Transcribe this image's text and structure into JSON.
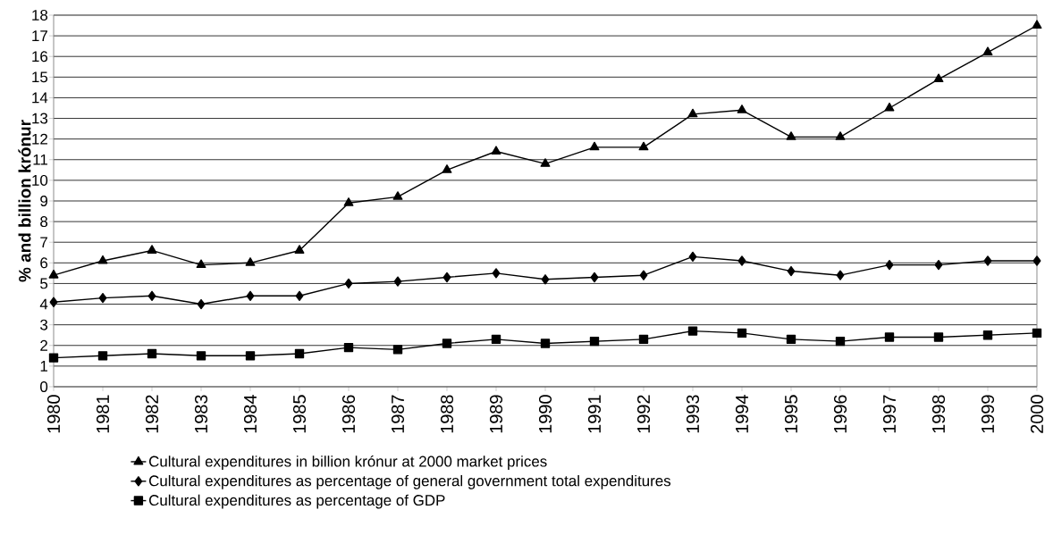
{
  "chart_data": {
    "type": "line",
    "ylabel": "% and billion krónur",
    "categories": [
      "1980",
      "1981",
      "1982",
      "1983",
      "1984",
      "1985",
      "1986",
      "1987",
      "1988",
      "1989",
      "1990",
      "1991",
      "1992",
      "1993",
      "1994",
      "1995",
      "1996",
      "1997",
      "1998",
      "1999",
      "2000"
    ],
    "series": [
      {
        "name": "Cultural expenditures in billion krónur at 2000 market prices",
        "color": "#000000",
        "marker": "triangle",
        "values": [
          5.4,
          6.1,
          6.6,
          5.9,
          6.0,
          6.6,
          8.9,
          9.2,
          10.5,
          11.4,
          10.8,
          11.6,
          11.6,
          13.2,
          13.4,
          12.1,
          12.1,
          13.5,
          14.9,
          16.2,
          17.5
        ]
      },
      {
        "name": "Cultural expenditures as percentage of general government total expenditures",
        "color": "#000000",
        "marker": "diamond",
        "values": [
          4.1,
          4.3,
          4.4,
          4.0,
          4.4,
          4.4,
          5.0,
          5.1,
          5.3,
          5.5,
          5.2,
          5.3,
          5.4,
          6.3,
          6.1,
          5.6,
          5.4,
          5.9,
          5.9,
          6.1,
          6.1
        ]
      },
      {
        "name": "Cultural expenditures as percentage of GDP",
        "color": "#000000",
        "marker": "square",
        "values": [
          1.4,
          1.5,
          1.6,
          1.5,
          1.5,
          1.6,
          1.9,
          1.8,
          2.1,
          2.3,
          2.1,
          2.2,
          2.3,
          2.7,
          2.6,
          2.3,
          2.2,
          2.4,
          2.4,
          2.5,
          2.6
        ]
      }
    ],
    "ylim": [
      0,
      18
    ],
    "yticks": [
      0,
      1,
      2,
      3,
      4,
      5,
      6,
      7,
      8,
      9,
      10,
      11,
      12,
      13,
      14,
      15,
      16,
      17,
      18
    ],
    "grid": "y",
    "legend": "bottom",
    "line_style": "solid"
  }
}
